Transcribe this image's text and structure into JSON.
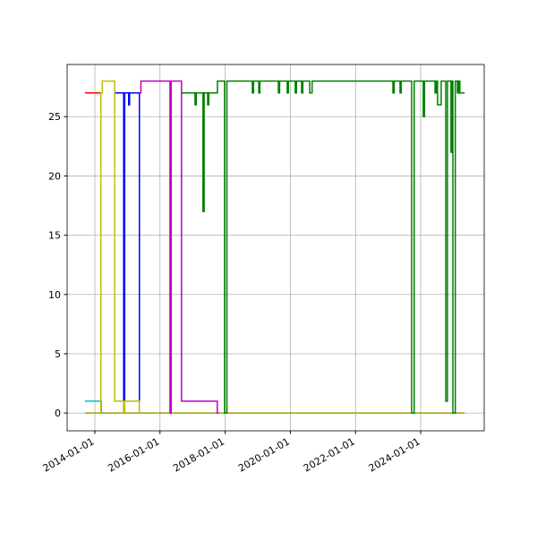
{
  "chart_data": {
    "type": "line",
    "step": "post",
    "grid": true,
    "xlim": [
      "2013-02-24",
      "2025-12-13"
    ],
    "xticks": [
      "2014-01-01",
      "2016-01-01",
      "2018-01-01",
      "2020-01-01",
      "2022-01-01",
      "2024-01-01"
    ],
    "ylim": [
      -1.5,
      29.4
    ],
    "yticks": [
      0,
      5,
      10,
      15,
      20,
      25
    ],
    "series": [
      {
        "color": "#a0a000",
        "x": [
          "2013-09-12",
          "2025-05-08"
        ],
        "values": [
          0,
          0
        ]
      },
      {
        "color": "#ff0000",
        "x": [
          "2013-09-12",
          "2014-03-10"
        ],
        "values": [
          27,
          27
        ]
      },
      {
        "color": "#00bfbf",
        "x": [
          "2013-09-12",
          "2014-03-15",
          "2014-04-01"
        ],
        "values": [
          1,
          0,
          0
        ]
      },
      {
        "color": "#0000ff",
        "x": [
          "2014-08-10",
          "2014-11-20",
          "2014-12-01",
          "2015-01-15",
          "2015-01-25",
          "2015-05-15",
          "2015-06-01"
        ],
        "values": [
          27,
          0,
          27,
          26,
          27,
          0,
          0
        ]
      },
      {
        "color": "#bfbf00",
        "x": [
          "2014-03-01",
          "2014-03-10",
          "2014-03-25",
          "2014-08-10",
          "2014-11-20",
          "2014-12-01",
          "2015-05-15",
          "2015-06-01"
        ],
        "values": [
          0,
          27,
          28,
          1,
          0,
          1,
          0,
          0
        ]
      },
      {
        "color": "#bf00bf",
        "x": [
          "2015-05-15",
          "2015-06-01",
          "2016-04-22",
          "2016-05-05",
          "2016-08-29",
          "2017-10-04",
          "2017-10-20"
        ],
        "values": [
          27,
          28,
          0,
          28,
          1,
          0,
          0
        ]
      },
      {
        "color": "#008000",
        "x": [
          "2016-08-31",
          "2017-01-28",
          "2017-02-10",
          "2017-04-27",
          "2017-05-10",
          "2017-06-18",
          "2017-07-01",
          "2017-10-06",
          "2017-12-25",
          "2018-01-20",
          "2018-11-01",
          "2018-11-15",
          "2019-01-12",
          "2019-01-25",
          "2019-08-20",
          "2019-09-03",
          "2019-11-27",
          "2019-12-10",
          "2020-02-25",
          "2020-03-10",
          "2020-05-06",
          "2020-05-20",
          "2020-08-05",
          "2020-09-01",
          "2023-02-24",
          "2023-03-10",
          "2023-05-15",
          "2023-05-28",
          "2023-09-22",
          "2023-10-20",
          "2024-01-30",
          "2024-02-13",
          "2024-06-10",
          "2024-06-24",
          "2024-07-08",
          "2024-08-18",
          "2024-10-08",
          "2024-10-27",
          "2024-12-06",
          "2024-12-20",
          "2024-12-27",
          "2025-01-23",
          "2025-02-16",
          "2025-03-01",
          "2025-03-15",
          "2025-05-08"
        ],
        "values": [
          27,
          26,
          27,
          17,
          27,
          26,
          27,
          28,
          0,
          28,
          27,
          28,
          27,
          28,
          27,
          28,
          27,
          28,
          27,
          28,
          27,
          28,
          27,
          28,
          27,
          28,
          27,
          28,
          0,
          28,
          25,
          28,
          27,
          28,
          26,
          28,
          1,
          28,
          22,
          28,
          0,
          28,
          27,
          28,
          27,
          27
        ]
      }
    ]
  }
}
